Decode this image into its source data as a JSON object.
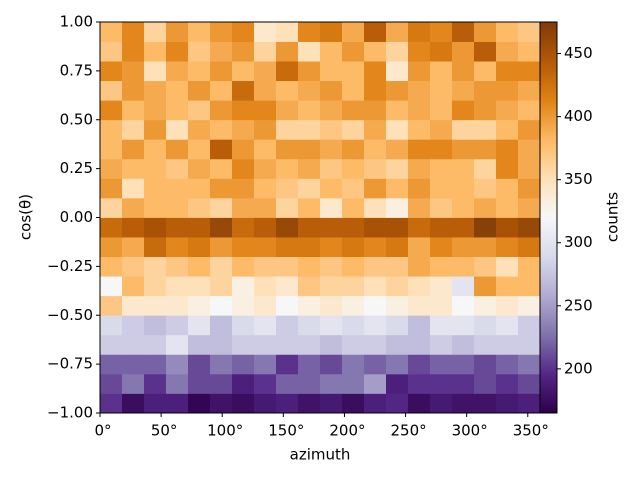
{
  "chart_data": {
    "type": "heatmap",
    "x_label": "azimuth",
    "y_label": "cos(θ)",
    "colorbar_label": "counts",
    "x_bins": [
      0,
      18,
      36,
      54,
      72,
      90,
      108,
      126,
      144,
      162,
      180,
      198,
      216,
      234,
      252,
      270,
      288,
      306,
      324,
      342,
      360
    ],
    "y_bins": [
      -1,
      -0.9,
      -0.8,
      -0.7,
      -0.6,
      -0.5,
      -0.4,
      -0.3,
      -0.2,
      -0.1,
      0,
      0.1,
      0.2,
      0.3,
      0.4,
      0.5,
      0.6,
      0.7,
      0.8,
      0.9,
      1
    ],
    "z": [
      [
        200,
        175,
        190,
        190,
        170,
        180,
        175,
        185,
        190,
        180,
        185,
        175,
        190,
        195,
        175,
        185,
        180,
        180,
        185,
        190
      ],
      [
        210,
        230,
        200,
        230,
        210,
        210,
        190,
        200,
        220,
        220,
        230,
        230,
        250,
        190,
        200,
        200,
        200,
        210,
        200,
        210
      ],
      [
        220,
        220,
        220,
        240,
        210,
        230,
        220,
        230,
        200,
        220,
        210,
        230,
        220,
        230,
        210,
        220,
        220,
        210,
        220,
        230
      ],
      [
        280,
        280,
        280,
        300,
        270,
        270,
        280,
        280,
        280,
        280,
        270,
        280,
        280,
        270,
        270,
        280,
        270,
        280,
        280,
        280
      ],
      [
        290,
        280,
        270,
        280,
        300,
        270,
        290,
        300,
        280,
        290,
        300,
        290,
        300,
        290,
        270,
        300,
        300,
        290,
        300,
        280
      ],
      [
        370,
        340,
        340,
        340,
        330,
        320,
        330,
        340,
        320,
        330,
        340,
        330,
        320,
        330,
        340,
        340,
        320,
        330,
        340,
        330
      ],
      [
        320,
        380,
        360,
        350,
        350,
        360,
        330,
        350,
        340,
        370,
        360,
        360,
        350,
        360,
        350,
        340,
        300,
        400,
        380,
        380
      ],
      [
        380,
        370,
        360,
        370,
        380,
        360,
        380,
        370,
        370,
        380,
        370,
        380,
        370,
        370,
        390,
        380,
        380,
        370,
        350,
        380
      ],
      [
        400,
        390,
        430,
        410,
        420,
        400,
        410,
        410,
        420,
        420,
        410,
        420,
        410,
        420,
        390,
        410,
        400,
        400,
        410,
        420
      ],
      [
        430,
        440,
        450,
        440,
        440,
        460,
        430,
        440,
        460,
        440,
        440,
        440,
        450,
        450,
        430,
        440,
        440,
        470,
        450,
        460
      ],
      [
        360,
        390,
        380,
        380,
        370,
        360,
        390,
        390,
        360,
        380,
        340,
        380,
        350,
        330,
        390,
        370,
        380,
        390,
        380,
        390
      ],
      [
        400,
        350,
        380,
        380,
        380,
        400,
        400,
        380,
        370,
        360,
        380,
        370,
        400,
        380,
        400,
        380,
        380,
        370,
        380,
        400
      ],
      [
        390,
        380,
        380,
        370,
        390,
        380,
        410,
        390,
        380,
        390,
        370,
        380,
        370,
        360,
        390,
        380,
        380,
        360,
        410,
        390
      ],
      [
        380,
        400,
        380,
        400,
        380,
        440,
        400,
        380,
        400,
        400,
        390,
        400,
        380,
        390,
        410,
        410,
        400,
        400,
        410,
        390
      ],
      [
        380,
        360,
        400,
        350,
        390,
        380,
        390,
        400,
        360,
        360,
        370,
        360,
        390,
        350,
        380,
        390,
        360,
        360,
        380,
        400
      ],
      [
        410,
        380,
        390,
        380,
        370,
        400,
        410,
        410,
        390,
        380,
        390,
        400,
        400,
        380,
        390,
        380,
        410,
        400,
        390,
        380
      ],
      [
        370,
        400,
        390,
        380,
        400,
        380,
        430,
        390,
        380,
        390,
        400,
        380,
        410,
        400,
        390,
        380,
        390,
        400,
        400,
        390
      ],
      [
        410,
        400,
        350,
        390,
        380,
        400,
        380,
        390,
        430,
        400,
        380,
        380,
        410,
        340,
        400,
        380,
        400,
        380,
        410,
        410
      ],
      [
        370,
        410,
        380,
        410,
        370,
        390,
        400,
        360,
        400,
        350,
        380,
        400,
        380,
        360,
        410,
        420,
        400,
        440,
        390,
        380
      ],
      [
        380,
        410,
        360,
        400,
        380,
        400,
        410,
        340,
        350,
        410,
        420,
        390,
        440,
        390,
        420,
        410,
        440,
        400,
        380,
        370
      ]
    ],
    "colormap": [
      "#2d004b",
      "#542788",
      "#8073ac",
      "#b2abd2",
      "#d8daeb",
      "#f7f7f7",
      "#fee0b6",
      "#fdb863",
      "#e08214",
      "#b35806",
      "#7f3b08"
    ],
    "clim": [
      165,
      475
    ],
    "cticks": [
      200,
      250,
      300,
      350,
      400,
      450
    ],
    "xlim": [
      0,
      360
    ],
    "xticks": [
      {
        "value": 0,
        "label": "0°"
      },
      {
        "value": 50,
        "label": "50°"
      },
      {
        "value": 100,
        "label": "100°"
      },
      {
        "value": 150,
        "label": "150°"
      },
      {
        "value": 200,
        "label": "200°"
      },
      {
        "value": 250,
        "label": "250°"
      },
      {
        "value": 300,
        "label": "300°"
      },
      {
        "value": 350,
        "label": "350°"
      }
    ],
    "ylim": [
      -1,
      1
    ],
    "yticks": [
      {
        "value": -1,
        "label": "−1.00"
      },
      {
        "value": -0.75,
        "label": "−0.75"
      },
      {
        "value": -0.5,
        "label": "−0.50"
      },
      {
        "value": -0.25,
        "label": "−0.25"
      },
      {
        "value": 0,
        "label": "0.00"
      },
      {
        "value": 0.25,
        "label": "0.25"
      },
      {
        "value": 0.5,
        "label": "0.50"
      },
      {
        "value": 0.75,
        "label": "0.75"
      },
      {
        "value": 1,
        "label": "1.00"
      }
    ]
  }
}
